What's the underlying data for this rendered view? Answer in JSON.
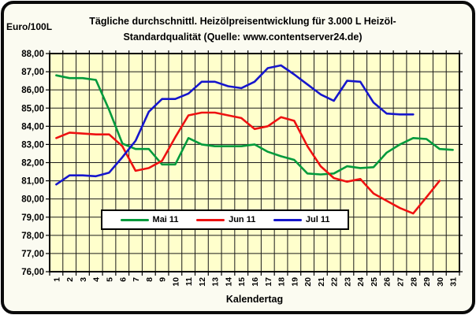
{
  "frame": {
    "unit_label": "Euro/100L",
    "title_line1": "Tägliche durchschnittl. Heizölpreisentwicklung für 3.000 L Heizöl-",
    "title_line2": "Standardqualität (Quelle: www.contentserver24.de)",
    "xaxis_title": "Kalendertag"
  },
  "chart_data": {
    "type": "line",
    "title": "Tägliche durchschnittl. Heizölpreisentwicklung für 3.000 L Heizöl-Standardqualität (Quelle: www.contentserver24.de)",
    "unit": "Euro/100L",
    "xlabel": "Kalendertag",
    "x": [
      1,
      2,
      3,
      4,
      5,
      6,
      7,
      8,
      9,
      10,
      11,
      12,
      13,
      14,
      15,
      16,
      17,
      18,
      19,
      20,
      21,
      22,
      23,
      24,
      25,
      26,
      27,
      28,
      29,
      30,
      31
    ],
    "ylim": [
      76,
      88
    ],
    "ytick_step": 1,
    "y_tick_labels": [
      "88,00",
      "87,00",
      "86,00",
      "85,00",
      "84,00",
      "83,00",
      "82,00",
      "81,00",
      "80,00",
      "79,00",
      "78,00",
      "77,00",
      "76,00"
    ],
    "grid": true,
    "legend_position": "bottom-center-overlay",
    "colors": {
      "plot_bg": "#ffffcc",
      "gridline": "#1a1a1a",
      "axis": "#000000",
      "frame_bg": "#fbfbf1"
    },
    "series": [
      {
        "name": "Mai 11",
        "color": "#009a3c",
        "values": [
          86.8,
          86.65,
          86.65,
          86.55,
          84.9,
          83.05,
          82.75,
          82.75,
          81.9,
          81.9,
          83.35,
          83.0,
          82.9,
          82.9,
          82.9,
          83.0,
          82.6,
          82.35,
          82.15,
          81.4,
          81.35,
          81.4,
          81.8,
          81.7,
          81.75,
          82.55,
          83.0,
          83.35,
          83.3,
          82.75,
          82.7
        ]
      },
      {
        "name": "Jun 11",
        "color": "#ee1111",
        "values": [
          83.35,
          83.65,
          83.6,
          83.55,
          83.55,
          82.9,
          81.55,
          81.7,
          82.1,
          83.4,
          84.6,
          84.75,
          84.75,
          84.6,
          84.45,
          83.85,
          84.0,
          84.5,
          84.3,
          82.9,
          81.8,
          81.15,
          80.95,
          81.1,
          80.3,
          79.9,
          79.5,
          79.2,
          80.1,
          81.0
        ]
      },
      {
        "name": "Jul 11",
        "color": "#1616cc",
        "values": [
          80.8,
          81.3,
          81.3,
          81.25,
          81.45,
          82.3,
          83.2,
          84.8,
          85.5,
          85.5,
          85.8,
          86.45,
          86.45,
          86.2,
          86.1,
          86.45,
          87.2,
          87.35,
          86.85,
          86.3,
          85.75,
          85.4,
          86.5,
          86.45,
          85.3,
          84.7,
          84.65,
          84.65
        ]
      }
    ]
  }
}
